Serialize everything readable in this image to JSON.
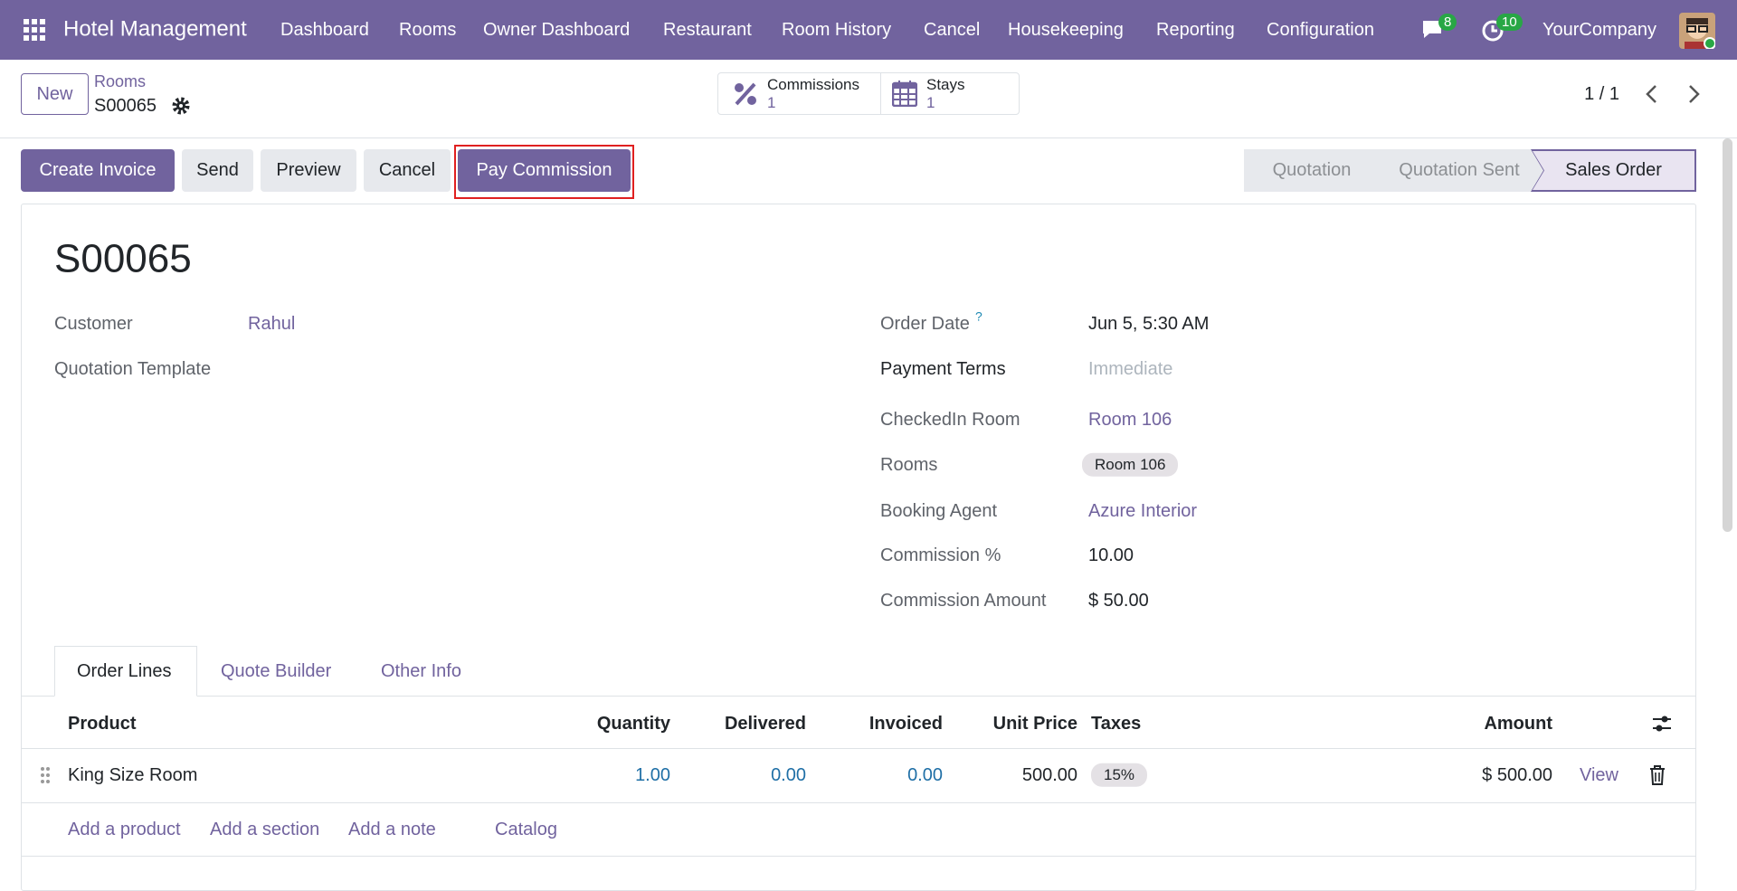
{
  "navbar": {
    "app": "Hotel Management",
    "menu": [
      "Dashboard",
      "Rooms",
      "Owner Dashboard",
      "Restaurant",
      "Room History",
      "Cancel",
      "Housekeeping",
      "Reporting",
      "Configuration"
    ],
    "chat_count": "8",
    "activity_count": "10",
    "company": "YourCompany"
  },
  "control_panel": {
    "new": "New",
    "breadcrumb": "Rooms",
    "record": "S00065",
    "smart_buttons": [
      {
        "label": "Commissions",
        "count": "1"
      },
      {
        "label": "Stays",
        "count": "1"
      }
    ],
    "pager": "1 / 1"
  },
  "actions": [
    "Create Invoice",
    "Send",
    "Preview",
    "Cancel",
    "Pay Commission"
  ],
  "status": [
    "Quotation",
    "Quotation Sent",
    "Sales Order"
  ],
  "form": {
    "title": "S00065",
    "left": [
      {
        "label": "Customer",
        "value": "Rahul"
      },
      {
        "label": "Quotation Template"
      }
    ],
    "right": [
      {
        "label": "Order Date",
        "help": "?",
        "value": "Jun 5, 5:30 AM"
      },
      {
        "label": "Payment Terms",
        "value": "Immediate"
      },
      {
        "label": "CheckedIn Room",
        "value": "Room 106"
      },
      {
        "label": "Rooms",
        "value": "Room 106"
      },
      {
        "label": "Booking Agent",
        "value": "Azure Interior"
      },
      {
        "label": "Commission %",
        "value": "10.00"
      },
      {
        "label": "Commission Amount",
        "value": "$ 50.00"
      }
    ]
  },
  "tabs": [
    "Order Lines",
    "Quote Builder",
    "Other Info"
  ],
  "table": {
    "headers": [
      "Product",
      "Quantity",
      "Delivered",
      "Invoiced",
      "Unit Price",
      "Taxes",
      "Amount"
    ],
    "rows": [
      [
        "King Size Room",
        "1.00",
        "0.00",
        "0.00",
        "500.00",
        "15%",
        "$ 500.00"
      ]
    ],
    "row_action": "View",
    "add_links": [
      "Add a product",
      "Add a section",
      "Add a note",
      "Catalog"
    ]
  }
}
